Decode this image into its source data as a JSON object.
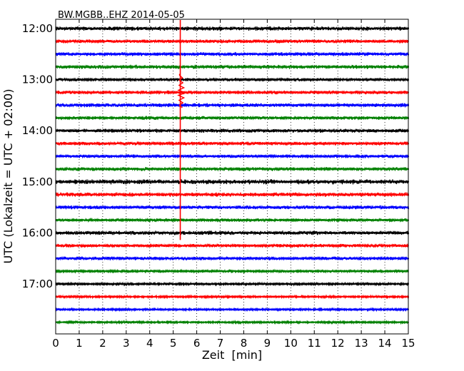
{
  "chart_data": {
    "type": "line",
    "title": "BW.MGBB..EHZ 2014-05-05",
    "xlabel": "Zeit  [min]",
    "ylabel": "UTC (Lokalzeit = UTC + 02:00)",
    "xlim": [
      0,
      15
    ],
    "x_ticks": [
      0,
      1,
      2,
      3,
      4,
      5,
      6,
      7,
      8,
      9,
      10,
      11,
      12,
      13,
      14,
      15
    ],
    "x_tick_labels": [
      "0",
      "1",
      "2",
      "3",
      "4",
      "5",
      "6",
      "7",
      "8",
      "9",
      "10",
      "11",
      "12",
      "13",
      "14",
      "15"
    ],
    "y_ticks": [
      {
        "label": "12:00",
        "row": 0
      },
      {
        "label": "13:00",
        "row": 4
      },
      {
        "label": "14:00",
        "row": 8
      },
      {
        "label": "15:00",
        "row": 12
      },
      {
        "label": "16:00",
        "row": 16
      },
      {
        "label": "17:00",
        "row": 20
      }
    ],
    "trace_colors": [
      "#000000",
      "#ff0000",
      "#0000ff",
      "#008000"
    ],
    "grid": "vertical dotted",
    "series": [
      {
        "start": "12:00",
        "amplitude": 1.6
      },
      {
        "start": "12:15",
        "amplitude": 1.3
      },
      {
        "start": "12:30",
        "amplitude": 1.4
      },
      {
        "start": "12:45",
        "amplitude": 1.5
      },
      {
        "start": "13:00",
        "amplitude": 1.2
      },
      {
        "start": "13:15",
        "amplitude": 1.3
      },
      {
        "start": "13:30",
        "amplitude": 1.5
      },
      {
        "start": "13:45",
        "amplitude": 1.3
      },
      {
        "start": "14:00",
        "amplitude": 1.4
      },
      {
        "start": "14:15",
        "amplitude": 1.3
      },
      {
        "start": "14:30",
        "amplitude": 1.2
      },
      {
        "start": "14:45",
        "amplitude": 1.4
      },
      {
        "start": "15:00",
        "amplitude": 1.8
      },
      {
        "start": "15:15",
        "amplitude": 1.6
      },
      {
        "start": "15:30",
        "amplitude": 1.4
      },
      {
        "start": "15:45",
        "amplitude": 1.2
      },
      {
        "start": "16:00",
        "amplitude": 1.5
      },
      {
        "start": "16:15",
        "amplitude": 1.3
      },
      {
        "start": "16:30",
        "amplitude": 1.3
      },
      {
        "start": "16:45",
        "amplitude": 1.0
      },
      {
        "start": "17:00",
        "amplitude": 0.9
      },
      {
        "start": "17:15",
        "amplitude": 0.8
      },
      {
        "start": "17:30",
        "amplitude": 0.8
      },
      {
        "start": "17:45",
        "amplitude": 0.8
      }
    ],
    "events": [
      {
        "time_min": 5.3,
        "rows": [
          0,
          16
        ],
        "peak_row": 5
      }
    ]
  }
}
